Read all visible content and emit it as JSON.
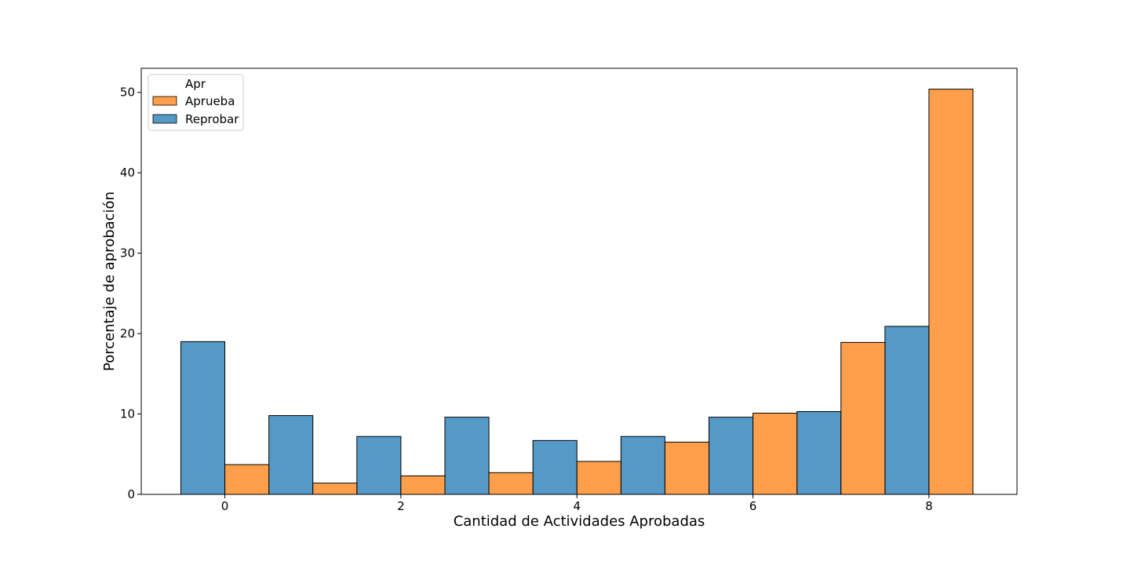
{
  "chart_data": {
    "type": "bar",
    "title": "",
    "xlabel": "Cantidad de Actividades Aprobadas",
    "ylabel": "Porcentaje de aprobación",
    "xlim": [
      -0.95,
      9.0
    ],
    "ylim": [
      0,
      53
    ],
    "xticks": [
      0,
      2,
      4,
      6,
      8
    ],
    "yticks": [
      0,
      10,
      20,
      30,
      40,
      50
    ],
    "bar_width": 0.5,
    "legend": {
      "title": "Apr",
      "position": "top-left",
      "entries": [
        "Aprueba",
        "Reprobar"
      ]
    },
    "series": [
      {
        "name": "Reprobar",
        "color": "#5599c7",
        "offset": -0.25,
        "x": [
          0,
          1,
          2,
          3,
          4,
          5,
          6,
          7,
          8
        ],
        "values": [
          19.0,
          9.8,
          7.2,
          9.6,
          6.7,
          7.2,
          9.6,
          10.3,
          20.9
        ]
      },
      {
        "name": "Aprueba",
        "color": "#ff9f4b",
        "offset": 0.25,
        "x": [
          0,
          1,
          2,
          3,
          4,
          5,
          6,
          7,
          8
        ],
        "values": [
          3.7,
          1.4,
          2.3,
          2.7,
          4.1,
          6.5,
          10.1,
          18.9,
          50.4
        ]
      }
    ]
  }
}
